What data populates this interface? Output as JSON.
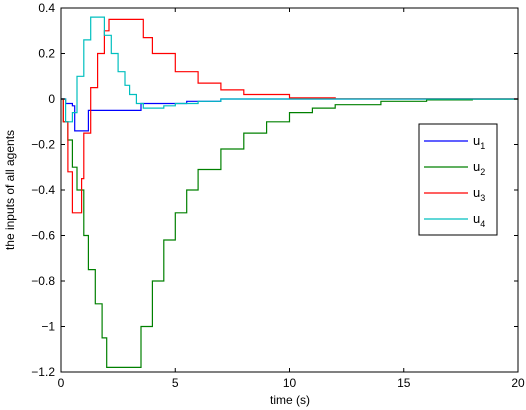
{
  "chart_data": {
    "type": "line",
    "title": "",
    "xlabel": "time (s)",
    "ylabel": "the inputs of all agents",
    "xlim": [
      0,
      20
    ],
    "ylim": [
      -1.2,
      0.4
    ],
    "xticks": [
      0,
      5,
      10,
      15,
      20
    ],
    "xtick_labels": [
      "0",
      "5",
      "10",
      "15",
      "20"
    ],
    "yticks": [
      0.4,
      0.2,
      0,
      -0.2,
      -0.4,
      -0.6,
      -0.8,
      -1,
      -1.2
    ],
    "ytick_labels": [
      "0.4",
      "0.2",
      "0",
      "−0.2",
      "−0.4",
      "−0.6",
      "−0.8",
      "−1",
      "−1.2"
    ],
    "grid": false,
    "legend_position": "right",
    "series": [
      {
        "name": "u",
        "subscript": "1",
        "color": "#0000ff",
        "x": [
          0,
          0.2,
          0.5,
          0.6,
          1.1,
          1.2,
          1.5,
          2.0,
          3.0,
          3.5,
          4.0,
          5.0,
          5.5,
          7.0,
          20.0
        ],
        "y": [
          0,
          -0.02,
          -0.03,
          -0.14,
          -0.14,
          -0.05,
          -0.05,
          -0.05,
          -0.05,
          -0.02,
          -0.02,
          -0.02,
          -0.01,
          0.0,
          0.0
        ]
      },
      {
        "name": "u",
        "subscript": "2",
        "color": "#008000",
        "x": [
          0,
          0.1,
          0.3,
          0.5,
          0.7,
          1.0,
          1.2,
          1.5,
          1.8,
          2.0,
          3.3,
          3.5,
          4.0,
          4.5,
          5.0,
          5.5,
          6.0,
          7.0,
          8.0,
          9.0,
          10.0,
          11.0,
          12.0,
          14.0,
          16.0,
          18.0,
          20.0
        ],
        "y": [
          0,
          -0.1,
          -0.18,
          -0.3,
          -0.4,
          -0.6,
          -0.75,
          -0.9,
          -1.05,
          -1.18,
          -1.18,
          -1.0,
          -0.8,
          -0.62,
          -0.5,
          -0.4,
          -0.31,
          -0.22,
          -0.15,
          -0.1,
          -0.06,
          -0.04,
          -0.025,
          -0.01,
          -0.004,
          -0.001,
          0
        ]
      },
      {
        "name": "u",
        "subscript": "3",
        "color": "#ff0000",
        "x": [
          0,
          0.1,
          0.3,
          0.5,
          0.6,
          0.9,
          1.0,
          1.3,
          1.6,
          1.9,
          2.1,
          3.2,
          3.6,
          4.0,
          5.0,
          6.0,
          7.0,
          8.0,
          10.0,
          12.0,
          20.0
        ],
        "y": [
          0,
          -0.1,
          -0.32,
          -0.5,
          -0.5,
          -0.35,
          -0.15,
          0.05,
          0.2,
          0.3,
          0.35,
          0.35,
          0.27,
          0.2,
          0.12,
          0.07,
          0.04,
          0.02,
          0.005,
          0.001,
          0
        ]
      },
      {
        "name": "u",
        "subscript": "4",
        "color": "#00bfbf",
        "x": [
          0,
          0.2,
          0.5,
          0.7,
          1.0,
          1.3,
          1.6,
          1.9,
          2.2,
          2.5,
          2.8,
          3.0,
          3.3,
          3.6,
          4.0,
          4.5,
          5.0,
          6.0,
          7.0,
          20.0
        ],
        "y": [
          0,
          -0.1,
          -0.06,
          0.1,
          0.26,
          0.36,
          0.36,
          0.28,
          0.2,
          0.12,
          0.06,
          0.02,
          -0.02,
          -0.04,
          -0.04,
          -0.03,
          -0.02,
          -0.01,
          0,
          0
        ]
      }
    ]
  }
}
